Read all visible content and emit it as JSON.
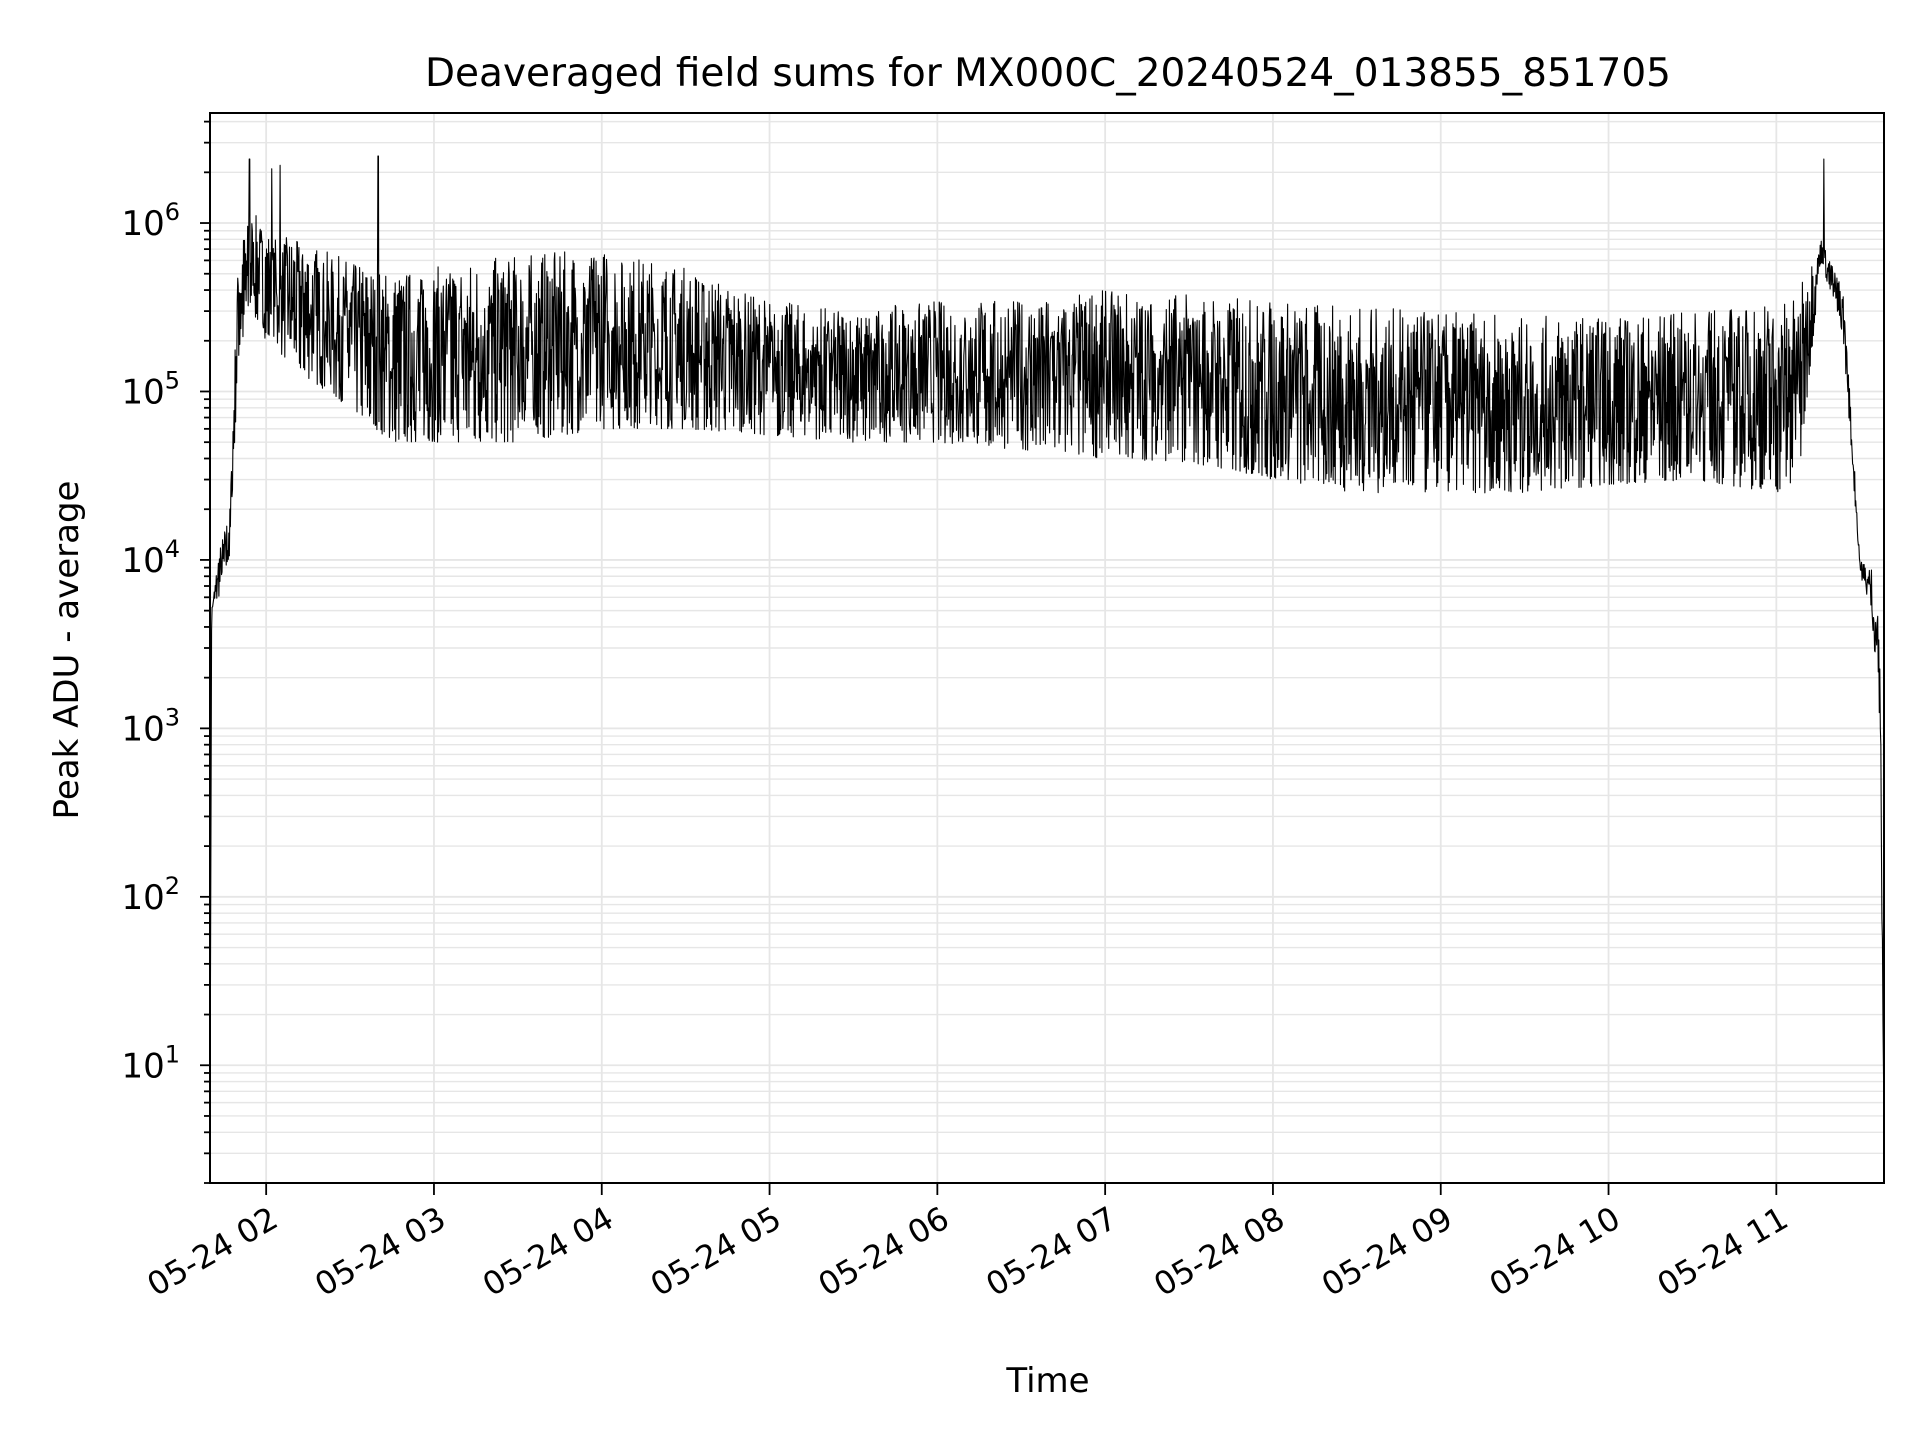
{
  "chart_data": {
    "type": "line",
    "title": "Deaveraged field sums for MX000C_20240524_013855_851705",
    "xlabel": "Time",
    "ylabel": "Peak ADU - average",
    "yscale": "log",
    "ylim": [
      2,
      4500000
    ],
    "xlim": [
      "05-24 01:39:55",
      "05-24 11:38:30"
    ],
    "x_ticks": [
      "05-24 02",
      "05-24 03",
      "05-24 04",
      "05-24 05",
      "05-24 06",
      "05-24 07",
      "05-24 08",
      "05-24 09",
      "05-24 10",
      "05-24 11"
    ],
    "y_ticks": [
      10,
      100,
      1000,
      10000,
      100000,
      1000000
    ],
    "y_tick_labels": [
      {
        "base": "10",
        "exp": "1"
      },
      {
        "base": "10",
        "exp": "2"
      },
      {
        "base": "10",
        "exp": "3"
      },
      {
        "base": "10",
        "exp": "4"
      },
      {
        "base": "10",
        "exp": "5"
      },
      {
        "base": "10",
        "exp": "6"
      }
    ],
    "grid": true,
    "legend": false,
    "line_color": "#000000",
    "grid_color": "#e6e6e6",
    "series_envelope": {
      "times": [
        "05-24 01:39:55",
        "05-24 01:40:30",
        "05-24 01:43",
        "05-24 01:47",
        "05-24 01:50",
        "05-24 01:55",
        "05-24 02:00",
        "05-24 02:15",
        "05-24 02:30",
        "05-24 02:45",
        "05-24 03:00",
        "05-24 03:30",
        "05-24 04:00",
        "05-24 04:30",
        "05-24 05:00",
        "05-24 05:30",
        "05-24 06:00",
        "05-24 06:30",
        "05-24 07:00",
        "05-24 07:30",
        "05-24 08:00",
        "05-24 08:30",
        "05-24 09:00",
        "05-24 09:30",
        "05-24 10:00",
        "05-24 10:30",
        "05-24 11:00",
        "05-24 11:08",
        "05-24 11:16",
        "05-24 11:24",
        "05-24 11:30",
        "05-24 11:34",
        "05-24 11:37",
        "05-24 11:38:30"
      ],
      "upper": [
        4,
        5000,
        11000,
        20000,
        700000,
        1200000,
        900000,
        750000,
        600000,
        500000,
        550000,
        650000,
        700000,
        550000,
        350000,
        300000,
        350000,
        350000,
        400000,
        380000,
        350000,
        320000,
        300000,
        280000,
        280000,
        300000,
        350000,
        400000,
        800000,
        400000,
        10000,
        9000,
        5000,
        4
      ],
      "lower": [
        4,
        5000,
        6000,
        10000,
        150000,
        300000,
        200000,
        120000,
        80000,
        50000,
        50000,
        50000,
        60000,
        60000,
        55000,
        50000,
        50000,
        45000,
        40000,
        38000,
        30000,
        25000,
        25000,
        25000,
        28000,
        30000,
        25000,
        30000,
        600000,
        200000,
        8000,
        5000,
        1000,
        4
      ]
    },
    "spikes": [
      {
        "time": "05-24 01:54",
        "value": 2400000
      },
      {
        "time": "05-24 02:02",
        "value": 2100000
      },
      {
        "time": "05-24 02:05",
        "value": 2200000
      },
      {
        "time": "05-24 02:40",
        "value": 2500000
      },
      {
        "time": "05-24 11:17",
        "value": 2400000
      }
    ]
  }
}
